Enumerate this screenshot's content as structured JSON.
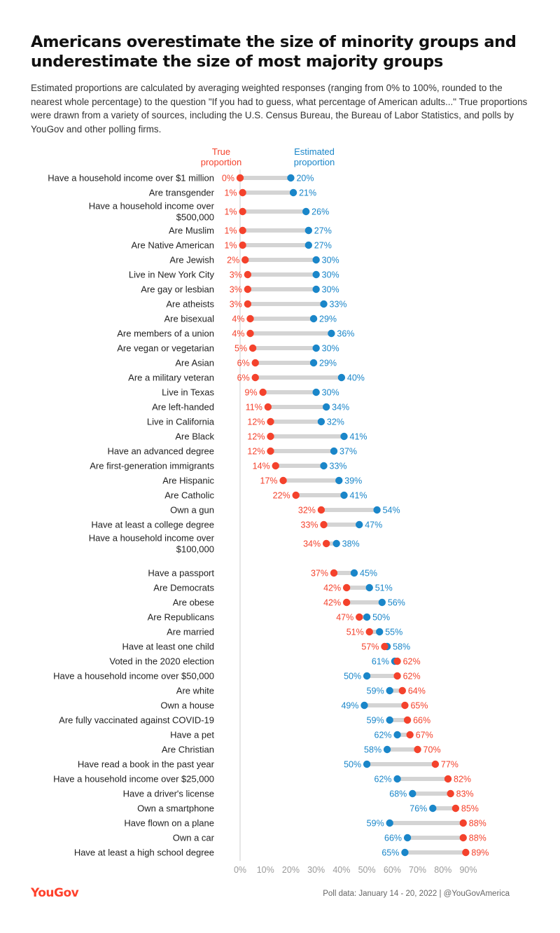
{
  "title": "Americans overestimate the size of minority groups and underestimate the size of most majority groups",
  "subtitle": "Estimated proportions are calculated by averaging weighted responses (ranging from 0% to 100%, rounded to the nearest whole percentage) to the question \"If you had to guess, what percentage of American adults...\" True proportions were drawn from a variety of sources, including the U.S. Census Bureau, the Bureau of Labor Statistics, and polls by YouGov and other polling firms.",
  "legend": {
    "true_label": [
      "True",
      "proportion"
    ],
    "estimated_label": [
      "Estimated",
      "proportion"
    ]
  },
  "colors": {
    "true": "#f4422c",
    "estimated": "#1a86c9",
    "connector": "#d4d4d4",
    "axis": "#cccccc",
    "tick": "#9a9a9a"
  },
  "footer": {
    "logo": "YouGov",
    "source": "Poll data: January 14 - 20, 2022 | @YouGovAmerica"
  },
  "chart_data": {
    "type": "dumbbell",
    "x_range": [
      0,
      90
    ],
    "x_ticks": [
      "0%",
      "10%",
      "20%",
      "30%",
      "40%",
      "50%",
      "60%",
      "70%",
      "80%",
      "90%"
    ],
    "series": [
      {
        "name": "True proportion"
      },
      {
        "name": "Estimated proportion"
      }
    ],
    "groups": [
      [
        {
          "label": [
            "Have a household income over $1 million"
          ],
          "true": 0,
          "estimated": 20
        },
        {
          "label": [
            "Are transgender"
          ],
          "true": 1,
          "estimated": 21
        },
        {
          "label": [
            "Have a household income over",
            "$500,000"
          ],
          "true": 1,
          "estimated": 26
        },
        {
          "label": [
            "Are Muslim"
          ],
          "true": 1,
          "estimated": 27
        },
        {
          "label": [
            "Are Native American"
          ],
          "true": 1,
          "estimated": 27
        },
        {
          "label": [
            "Are Jewish"
          ],
          "true": 2,
          "estimated": 30
        },
        {
          "label": [
            "Live in New York City"
          ],
          "true": 3,
          "estimated": 30
        },
        {
          "label": [
            "Are gay or lesbian"
          ],
          "true": 3,
          "estimated": 30
        },
        {
          "label": [
            "Are atheists"
          ],
          "true": 3,
          "estimated": 33
        },
        {
          "label": [
            "Are bisexual"
          ],
          "true": 4,
          "estimated": 29
        },
        {
          "label": [
            "Are members of a union"
          ],
          "true": 4,
          "estimated": 36
        },
        {
          "label": [
            "Are vegan or vegetarian"
          ],
          "true": 5,
          "estimated": 30
        },
        {
          "label": [
            "Are Asian"
          ],
          "true": 6,
          "estimated": 29
        },
        {
          "label": [
            "Are a military veteran"
          ],
          "true": 6,
          "estimated": 40
        },
        {
          "label": [
            "Live in Texas"
          ],
          "true": 9,
          "estimated": 30
        },
        {
          "label": [
            "Are left-handed"
          ],
          "true": 11,
          "estimated": 34
        },
        {
          "label": [
            "Live in California"
          ],
          "true": 12,
          "estimated": 32
        },
        {
          "label": [
            "Are Black"
          ],
          "true": 12,
          "estimated": 41
        },
        {
          "label": [
            "Have an advanced degree"
          ],
          "true": 12,
          "estimated": 37
        },
        {
          "label": [
            "Are first-generation immigrants"
          ],
          "true": 14,
          "estimated": 33
        },
        {
          "label": [
            "Are Hispanic"
          ],
          "true": 17,
          "estimated": 39
        },
        {
          "label": [
            "Are Catholic"
          ],
          "true": 22,
          "estimated": 41
        },
        {
          "label": [
            "Own a gun"
          ],
          "true": 32,
          "estimated": 54
        },
        {
          "label": [
            "Have at least a college degree"
          ],
          "true": 33,
          "estimated": 47
        },
        {
          "label": [
            "Have a household income over",
            "$100,000"
          ],
          "true": 34,
          "estimated": 38
        }
      ],
      [
        {
          "label": [
            "Have a passport"
          ],
          "true": 37,
          "estimated": 45
        },
        {
          "label": [
            "Are Democrats"
          ],
          "true": 42,
          "estimated": 51
        },
        {
          "label": [
            "Are obese"
          ],
          "true": 42,
          "estimated": 56
        },
        {
          "label": [
            "Are Republicans"
          ],
          "true": 47,
          "estimated": 50
        },
        {
          "label": [
            "Are married"
          ],
          "true": 51,
          "estimated": 55
        },
        {
          "label": [
            "Have at least one child"
          ],
          "true": 57,
          "estimated": 58
        },
        {
          "label": [
            "Voted in the 2020 election"
          ],
          "true": 62,
          "estimated": 61
        },
        {
          "label": [
            "Have a household income over $50,000"
          ],
          "true": 62,
          "estimated": 50
        },
        {
          "label": [
            "Are white"
          ],
          "true": 64,
          "estimated": 59
        },
        {
          "label": [
            "Own a house"
          ],
          "true": 65,
          "estimated": 49
        },
        {
          "label": [
            "Are fully vaccinated against COVID-19"
          ],
          "true": 66,
          "estimated": 59
        },
        {
          "label": [
            "Have a pet"
          ],
          "true": 67,
          "estimated": 62
        },
        {
          "label": [
            "Are Christian"
          ],
          "true": 70,
          "estimated": 58
        },
        {
          "label": [
            "Have read a book in the past year"
          ],
          "true": 77,
          "estimated": 50
        },
        {
          "label": [
            "Have a household income over $25,000"
          ],
          "true": 82,
          "estimated": 62
        },
        {
          "label": [
            "Have a driver's license"
          ],
          "true": 83,
          "estimated": 68
        },
        {
          "label": [
            "Own a smartphone"
          ],
          "true": 85,
          "estimated": 76
        },
        {
          "label": [
            "Have flown on a plane"
          ],
          "true": 88,
          "estimated": 59
        },
        {
          "label": [
            "Own a car"
          ],
          "true": 88,
          "estimated": 66
        },
        {
          "label": [
            "Have at least a high school degree"
          ],
          "true": 89,
          "estimated": 65
        }
      ]
    ]
  }
}
